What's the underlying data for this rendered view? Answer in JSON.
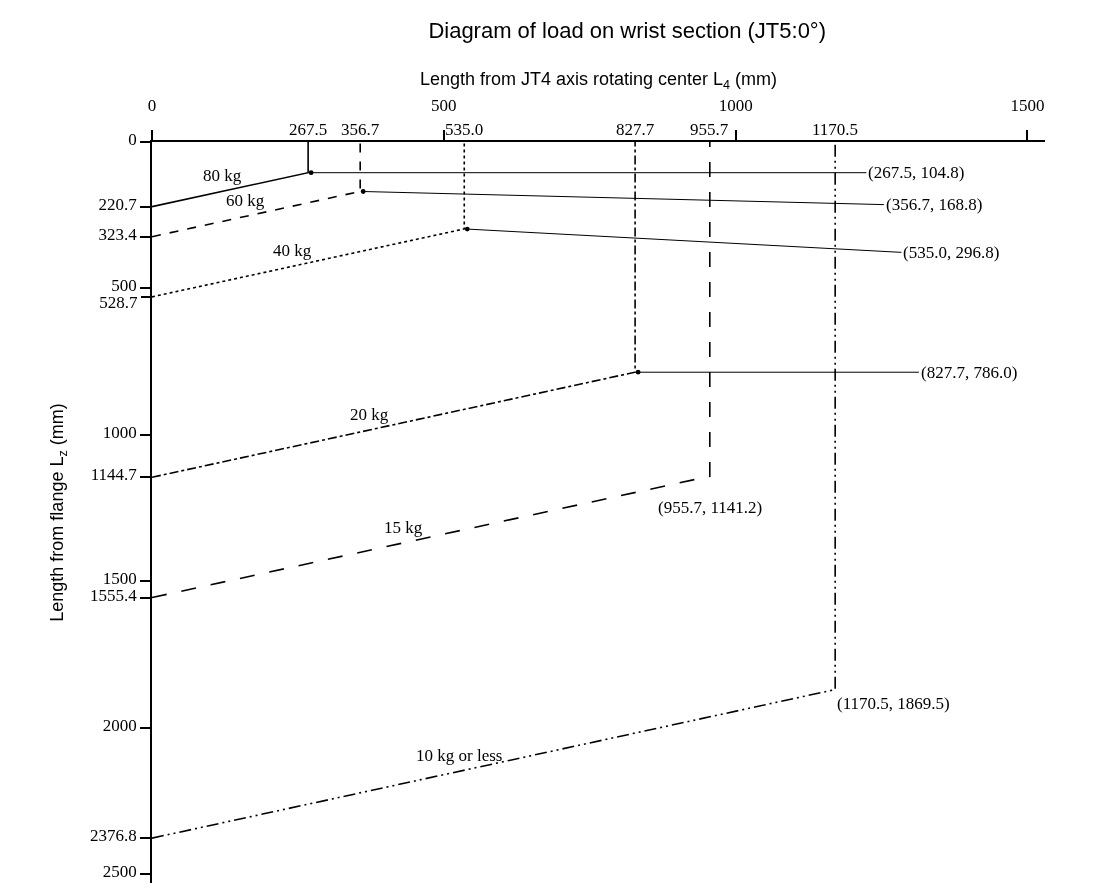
{
  "chart_data": {
    "type": "line",
    "title": "Diagram of load on wrist section (JT5:0°)",
    "xlabel": "Length from JT4 axis rotating center L$_{4}$ (mm)",
    "ylabel": "Length from flange L$_{z}$ (mm)",
    "xlim": [
      0,
      1530
    ],
    "xticks": [
      0,
      500,
      1000,
      1500
    ],
    "ylim": [
      2530,
      0
    ],
    "yticks": [
      0,
      220.7,
      323.4,
      500,
      528.7,
      1000,
      1144.7,
      1500,
      1555.4,
      2000,
      2376.8,
      2500
    ],
    "legend": false,
    "marker": "none",
    "series": [
      {
        "name": "80 kg",
        "color": "#000000",
        "line_style": "solid",
        "x": [
          0,
          267.5,
          267.5
        ],
        "values": [
          220.7,
          104.8,
          0
        ]
      },
      {
        "name": "60 kg",
        "color": "#000000",
        "line_style": "dashed",
        "x": [
          0,
          356.7,
          356.7
        ],
        "values": [
          323.4,
          168.8,
          0
        ]
      },
      {
        "name": "40 kg",
        "color": "#000000",
        "line_style": "dotted",
        "x": [
          0,
          535.0,
          535.0
        ],
        "values": [
          528.7,
          296.8,
          0
        ]
      },
      {
        "name": "20 kg",
        "color": "#000000",
        "line_style": "dashdot",
        "x": [
          0,
          827.7,
          827.7
        ],
        "values": [
          1144.7,
          786.0,
          0
        ]
      },
      {
        "name": "15 kg",
        "color": "#000000",
        "line_style": "longdash",
        "x": [
          0,
          955.7,
          955.7
        ],
        "values": [
          1555.4,
          1141.2,
          0
        ]
      },
      {
        "name": "10 kg or less",
        "color": "#000000",
        "line_style": "dashdotdot",
        "x": [
          0,
          1170.5,
          1170.5
        ],
        "values": [
          2376.8,
          1869.5,
          0
        ]
      }
    ],
    "annotations": [
      {
        "text": "267.5",
        "x": 267.5,
        "y": 0
      },
      {
        "text": "356.7",
        "x": 356.7,
        "y": 0
      },
      {
        "text": "535.0",
        "x": 535.0,
        "y": 0
      },
      {
        "text": "827.7",
        "x": 827.7,
        "y": 0
      },
      {
        "text": "955.7",
        "x": 955.7,
        "y": 0
      },
      {
        "text": "1170.5",
        "x": 1170.5,
        "y": 0
      },
      {
        "text": "(267.5, 104.8)",
        "x": 267.5,
        "y": 104.8
      },
      {
        "text": "(356.7, 168.8)",
        "x": 356.7,
        "y": 168.8
      },
      {
        "text": "(535.0, 296.8)",
        "x": 535.0,
        "y": 296.8
      },
      {
        "text": "(827.7, 786.0)",
        "x": 827.7,
        "y": 786.0
      },
      {
        "text": "(955.7, 1141.2)",
        "x": 955.7,
        "y": 1141.2
      },
      {
        "text": "(1170.5, 1869.5)",
        "x": 1170.5,
        "y": 1869.5
      }
    ]
  }
}
